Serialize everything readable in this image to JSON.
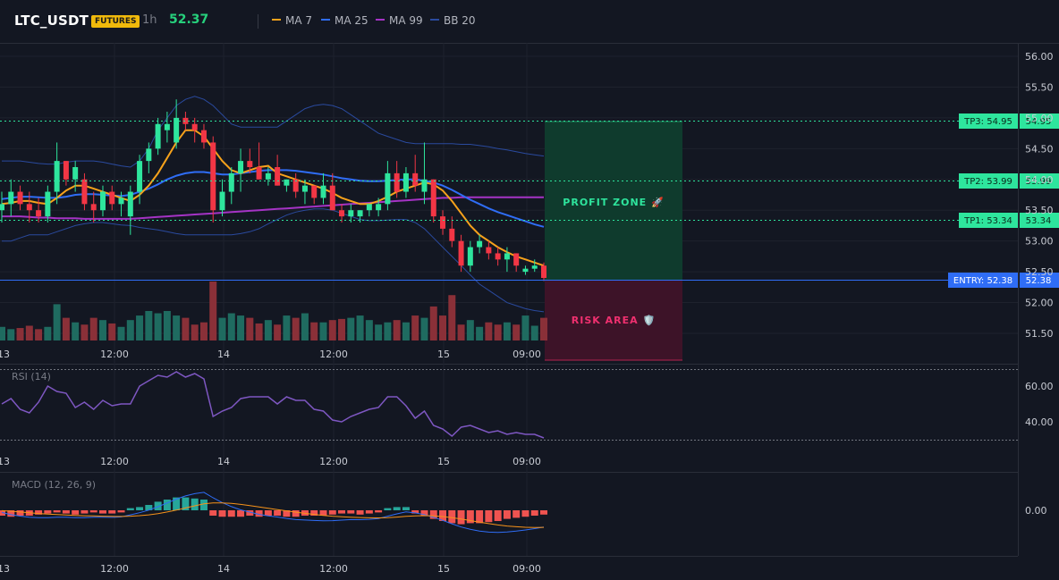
{
  "header": {
    "symbol": "LTC_USDT",
    "badge": "FUTURES",
    "interval": "1h",
    "price": "52.37",
    "indicators": [
      {
        "label": "MA 7",
        "color": "#f7a21b"
      },
      {
        "label": "MA 25",
        "color": "#2f6df6"
      },
      {
        "label": "MA 99",
        "color": "#a533c5"
      },
      {
        "label": "BB 20",
        "color": "#2a4a9e"
      }
    ]
  },
  "main_pane": {
    "price_ticks": [
      "56.00",
      "55.50",
      "55.00",
      "54.50",
      "54.00",
      "53.50",
      "53.00",
      "52.50",
      "52.00",
      "51.50"
    ],
    "levels": [
      {
        "label": "TP3: 54.95",
        "value": "54.95",
        "price": 54.95
      },
      {
        "label": "TP2: 53.99",
        "value": "53.99",
        "price": 53.99
      },
      {
        "label": "TP1: 53.34",
        "value": "53.34",
        "price": 53.34
      }
    ],
    "entry": {
      "label": "ENTRY: 52.38",
      "value": "52.38",
      "price": 52.38
    },
    "profit_zone_label": "PROFIT ZONE 🚀",
    "risk_area_label": "RISK AREA 🛡️",
    "colors": {
      "up": "#26a69a",
      "down": "#ef5350",
      "up_bright": "#2ee59d",
      "down_bright": "#f23645"
    }
  },
  "time_axis": [
    "13",
    "12:00",
    "14",
    "12:00",
    "15",
    "09:00"
  ],
  "rsi_pane": {
    "title": "RSI (14)",
    "ticks": [
      "60.00",
      "40.00"
    ],
    "values": [
      50,
      53,
      47,
      45,
      51,
      60,
      57,
      56,
      48,
      51,
      47,
      52,
      49,
      50,
      50,
      60,
      63,
      66,
      65,
      68,
      65,
      67,
      64,
      43,
      46,
      48,
      53,
      54,
      54,
      54,
      50,
      54,
      52,
      52,
      47,
      46,
      41,
      40,
      43,
      45,
      47,
      48,
      54,
      54,
      49,
      42,
      46,
      38,
      36,
      32,
      37,
      38,
      36,
      34,
      35,
      33,
      34,
      33,
      33,
      31
    ]
  },
  "macd_pane": {
    "title": "MACD (12, 26, 9)",
    "ticks": [
      "0.00"
    ],
    "histogram": [
      -0.05,
      -0.06,
      -0.05,
      -0.05,
      -0.04,
      -0.03,
      -0.02,
      -0.03,
      -0.04,
      -0.03,
      -0.02,
      -0.03,
      -0.03,
      -0.02,
      0.02,
      0.03,
      0.05,
      0.08,
      0.1,
      0.12,
      0.12,
      0.11,
      0.1,
      -0.05,
      -0.06,
      -0.06,
      -0.06,
      -0.05,
      -0.06,
      -0.05,
      -0.05,
      -0.06,
      -0.06,
      -0.05,
      -0.05,
      -0.05,
      -0.04,
      -0.03,
      -0.03,
      -0.04,
      -0.03,
      -0.02,
      0.02,
      0.03,
      0.03,
      -0.03,
      -0.05,
      -0.08,
      -0.1,
      -0.12,
      -0.13,
      -0.12,
      -0.12,
      -0.11,
      -0.1,
      -0.08,
      -0.07,
      -0.06,
      -0.05,
      -0.04
    ]
  },
  "chart_data": {
    "type": "candlestick",
    "y_range": [
      51.3,
      56.2
    ],
    "candles": [
      {
        "o": 53.5,
        "h": 53.8,
        "l": 53.3,
        "c": 53.6
      },
      {
        "o": 53.6,
        "h": 54.0,
        "l": 53.4,
        "c": 53.8
      },
      {
        "o": 53.8,
        "h": 53.9,
        "l": 53.5,
        "c": 53.6
      },
      {
        "o": 53.6,
        "h": 53.8,
        "l": 53.3,
        "c": 53.5
      },
      {
        "o": 53.5,
        "h": 53.7,
        "l": 53.3,
        "c": 53.4
      },
      {
        "o": 53.4,
        "h": 53.9,
        "l": 53.3,
        "c": 53.8
      },
      {
        "o": 53.8,
        "h": 54.6,
        "l": 53.6,
        "c": 54.3
      },
      {
        "o": 54.3,
        "h": 54.3,
        "l": 53.9,
        "c": 54.0
      },
      {
        "o": 54.0,
        "h": 54.3,
        "l": 53.8,
        "c": 54.2
      },
      {
        "o": 54.0,
        "h": 54.1,
        "l": 53.5,
        "c": 53.6
      },
      {
        "o": 53.6,
        "h": 53.8,
        "l": 53.3,
        "c": 53.5
      },
      {
        "o": 53.5,
        "h": 53.9,
        "l": 53.4,
        "c": 53.8
      },
      {
        "o": 53.8,
        "h": 53.9,
        "l": 53.5,
        "c": 53.6
      },
      {
        "o": 53.6,
        "h": 53.8,
        "l": 53.4,
        "c": 53.7
      },
      {
        "o": 53.4,
        "h": 53.9,
        "l": 53.1,
        "c": 53.8
      },
      {
        "o": 53.8,
        "h": 54.4,
        "l": 53.6,
        "c": 54.3
      },
      {
        "o": 54.3,
        "h": 54.6,
        "l": 54.1,
        "c": 54.5
      },
      {
        "o": 54.5,
        "h": 55.0,
        "l": 54.4,
        "c": 54.9
      },
      {
        "o": 54.8,
        "h": 55.1,
        "l": 54.6,
        "c": 54.9
      },
      {
        "o": 54.6,
        "h": 55.3,
        "l": 54.5,
        "c": 55.0
      },
      {
        "o": 55.0,
        "h": 55.1,
        "l": 54.8,
        "c": 54.9
      },
      {
        "o": 54.9,
        "h": 55.0,
        "l": 54.6,
        "c": 54.8
      },
      {
        "o": 54.8,
        "h": 54.9,
        "l": 54.5,
        "c": 54.6
      },
      {
        "o": 54.6,
        "h": 54.7,
        "l": 53.3,
        "c": 53.5
      },
      {
        "o": 53.5,
        "h": 54.0,
        "l": 53.4,
        "c": 53.8
      },
      {
        "o": 53.8,
        "h": 54.2,
        "l": 53.6,
        "c": 54.1
      },
      {
        "o": 54.1,
        "h": 54.5,
        "l": 53.8,
        "c": 54.3
      },
      {
        "o": 54.3,
        "h": 54.5,
        "l": 54.1,
        "c": 54.2
      },
      {
        "o": 54.2,
        "h": 54.6,
        "l": 54.0,
        "c": 54.0
      },
      {
        "o": 54.0,
        "h": 54.2,
        "l": 53.9,
        "c": 54.1
      },
      {
        "o": 54.2,
        "h": 54.4,
        "l": 53.9,
        "c": 53.9
      },
      {
        "o": 53.9,
        "h": 54.0,
        "l": 53.8,
        "c": 54.0
      },
      {
        "o": 54.0,
        "h": 54.1,
        "l": 53.7,
        "c": 53.8
      },
      {
        "o": 53.8,
        "h": 54.0,
        "l": 53.6,
        "c": 53.9
      },
      {
        "o": 53.9,
        "h": 53.9,
        "l": 53.6,
        "c": 53.7
      },
      {
        "o": 53.7,
        "h": 54.1,
        "l": 53.6,
        "c": 53.9
      },
      {
        "o": 53.9,
        "h": 54.1,
        "l": 53.5,
        "c": 53.5
      },
      {
        "o": 53.5,
        "h": 53.6,
        "l": 53.3,
        "c": 53.4
      },
      {
        "o": 53.4,
        "h": 53.6,
        "l": 53.3,
        "c": 53.5
      },
      {
        "o": 53.4,
        "h": 53.5,
        "l": 53.3,
        "c": 53.5
      },
      {
        "o": 53.5,
        "h": 53.6,
        "l": 53.4,
        "c": 53.6
      },
      {
        "o": 53.5,
        "h": 53.7,
        "l": 53.4,
        "c": 53.6
      },
      {
        "o": 53.6,
        "h": 54.3,
        "l": 53.5,
        "c": 54.1
      },
      {
        "o": 54.1,
        "h": 54.3,
        "l": 53.7,
        "c": 53.8
      },
      {
        "o": 53.8,
        "h": 54.2,
        "l": 53.7,
        "c": 54.1
      },
      {
        "o": 54.1,
        "h": 54.4,
        "l": 53.8,
        "c": 53.9
      },
      {
        "o": 53.8,
        "h": 54.6,
        "l": 53.6,
        "c": 54.0
      },
      {
        "o": 54.0,
        "h": 54.0,
        "l": 53.3,
        "c": 53.4
      },
      {
        "o": 53.4,
        "h": 53.5,
        "l": 53.1,
        "c": 53.2
      },
      {
        "o": 53.2,
        "h": 53.4,
        "l": 52.9,
        "c": 53.0
      },
      {
        "o": 53.0,
        "h": 53.1,
        "l": 52.5,
        "c": 52.6
      },
      {
        "o": 52.6,
        "h": 53.0,
        "l": 52.5,
        "c": 52.9
      },
      {
        "o": 52.9,
        "h": 53.1,
        "l": 52.8,
        "c": 53.0
      },
      {
        "o": 52.9,
        "h": 53.0,
        "l": 52.7,
        "c": 52.8
      },
      {
        "o": 52.8,
        "h": 52.9,
        "l": 52.6,
        "c": 52.7
      },
      {
        "o": 52.7,
        "h": 52.9,
        "l": 52.5,
        "c": 52.8
      },
      {
        "o": 52.8,
        "h": 52.8,
        "l": 52.5,
        "c": 52.6
      },
      {
        "o": 52.5,
        "h": 52.6,
        "l": 52.45,
        "c": 52.55
      },
      {
        "o": 52.55,
        "h": 52.7,
        "l": 52.5,
        "c": 52.6
      },
      {
        "o": 52.6,
        "h": 52.65,
        "l": 52.35,
        "c": 52.4
      }
    ],
    "ma7": [
      53.6,
      53.62,
      53.65,
      53.65,
      53.62,
      53.6,
      53.7,
      53.82,
      53.9,
      53.9,
      53.85,
      53.8,
      53.75,
      53.7,
      53.65,
      53.75,
      53.9,
      54.1,
      54.35,
      54.6,
      54.8,
      54.8,
      54.7,
      54.5,
      54.3,
      54.15,
      54.1,
      54.15,
      54.2,
      54.22,
      54.1,
      54.05,
      54.0,
      53.95,
      53.9,
      53.85,
      53.78,
      53.7,
      53.65,
      53.6,
      53.6,
      53.65,
      53.72,
      53.8,
      53.85,
      53.9,
      53.95,
      53.92,
      53.82,
      53.65,
      53.45,
      53.25,
      53.1,
      53.0,
      52.9,
      52.82,
      52.75,
      52.7,
      52.65,
      52.6
    ],
    "ma25": [
      53.68,
      53.7,
      53.72,
      53.72,
      53.71,
      53.7,
      53.7,
      53.72,
      53.75,
      53.76,
      53.76,
      53.75,
      53.74,
      53.73,
      53.75,
      53.8,
      53.85,
      53.92,
      54.0,
      54.06,
      54.1,
      54.12,
      54.12,
      54.1,
      54.08,
      54.08,
      54.1,
      54.12,
      54.14,
      54.15,
      54.15,
      54.15,
      54.14,
      54.12,
      54.1,
      54.08,
      54.05,
      54.02,
      54.0,
      53.98,
      53.97,
      53.97,
      53.98,
      53.99,
      54.0,
      54.0,
      53.98,
      53.95,
      53.9,
      53.83,
      53.75,
      53.67,
      53.6,
      53.53,
      53.47,
      53.42,
      53.37,
      53.32,
      53.27,
      53.23
    ],
    "ma99": [
      53.4,
      53.4,
      53.4,
      53.39,
      53.38,
      53.38,
      53.37,
      53.37,
      53.37,
      53.36,
      53.36,
      53.36,
      53.36,
      53.36,
      53.36,
      53.37,
      53.38,
      53.39,
      53.4,
      53.41,
      53.42,
      53.43,
      53.44,
      53.45,
      53.46,
      53.47,
      53.48,
      53.49,
      53.5,
      53.51,
      53.52,
      53.53,
      53.54,
      53.55,
      53.56,
      53.57,
      53.58,
      53.59,
      53.6,
      53.61,
      53.62,
      53.63,
      53.64,
      53.65,
      53.66,
      53.67,
      53.68,
      53.69,
      53.7,
      53.7,
      53.71,
      53.71,
      53.71,
      53.71,
      53.71,
      53.71,
      53.71,
      53.71,
      53.71,
      53.71
    ],
    "bb_upper": [
      54.3,
      54.3,
      54.3,
      54.28,
      54.26,
      54.25,
      54.25,
      54.28,
      54.3,
      54.3,
      54.3,
      54.28,
      54.25,
      54.22,
      54.2,
      54.3,
      54.5,
      54.8,
      55.0,
      55.2,
      55.3,
      55.35,
      55.3,
      55.2,
      55.05,
      54.9,
      54.85,
      54.85,
      54.85,
      54.85,
      54.85,
      54.95,
      55.05,
      55.15,
      55.2,
      55.22,
      55.2,
      55.15,
      55.05,
      54.95,
      54.85,
      54.75,
      54.7,
      54.65,
      54.6,
      54.58,
      54.58,
      54.58,
      54.58,
      54.58,
      54.57,
      54.57,
      54.55,
      54.53,
      54.5,
      54.48,
      54.45,
      54.42,
      54.4,
      54.38
    ],
    "bb_lower": [
      53.0,
      53.0,
      53.05,
      53.1,
      53.1,
      53.1,
      53.15,
      53.2,
      53.25,
      53.28,
      53.3,
      53.3,
      53.28,
      53.26,
      53.25,
      53.22,
      53.2,
      53.18,
      53.15,
      53.12,
      53.1,
      53.1,
      53.1,
      53.1,
      53.1,
      53.1,
      53.12,
      53.15,
      53.2,
      53.28,
      53.35,
      53.42,
      53.47,
      53.5,
      53.52,
      53.52,
      53.5,
      53.45,
      53.4,
      53.35,
      53.33,
      53.33,
      53.34,
      53.35,
      53.35,
      53.3,
      53.2,
      53.05,
      52.9,
      52.75,
      52.6,
      52.45,
      52.3,
      52.2,
      52.1,
      52.0,
      51.95,
      51.9,
      51.87,
      51.85
    ],
    "volume": [
      1.2,
      1.0,
      1.1,
      1.3,
      1.0,
      1.2,
      3.2,
      2.0,
      1.6,
      1.4,
      2.0,
      1.8,
      1.5,
      1.2,
      1.8,
      2.2,
      2.6,
      2.4,
      2.6,
      2.2,
      2.0,
      1.4,
      1.6,
      5.2,
      2.0,
      2.4,
      2.2,
      2.0,
      1.5,
      1.8,
      1.4,
      2.2,
      2.0,
      2.4,
      1.6,
      1.6,
      1.8,
      1.9,
      2.0,
      2.2,
      1.8,
      1.4,
      1.6,
      1.8,
      1.6,
      2.2,
      2.0,
      3.0,
      2.2,
      4.0,
      1.4,
      1.8,
      1.2,
      1.6,
      1.4,
      1.6,
      1.4,
      2.2,
      1.3,
      2.0
    ]
  }
}
